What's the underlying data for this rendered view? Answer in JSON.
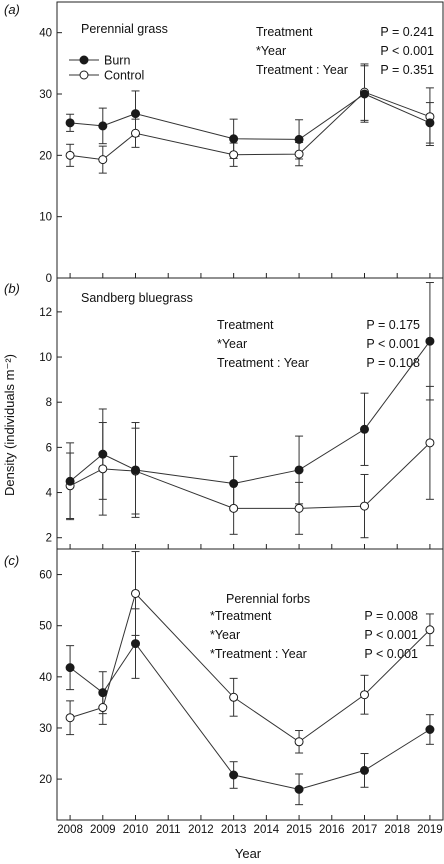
{
  "y_axis_title": "Density (individuals m⁻²)",
  "x_axis_title": "Year",
  "x_ticks": [
    "2008",
    "2009",
    "2010",
    "2011",
    "2012",
    "2013",
    "2014",
    "2015",
    "2016",
    "2017",
    "2018",
    "2019"
  ],
  "colors": {
    "burn": "#1a1a1a",
    "control": "#ffffff",
    "line": "#333333"
  },
  "chart_data": [
    {
      "type": "line",
      "panel_label": "(a)",
      "title": "Perennial grass",
      "xlabel": "Year",
      "ylabel": "Density (individuals m⁻²)",
      "xlim": [
        2007.6,
        2019.4
      ],
      "ylim": [
        0,
        45
      ],
      "yticks": [
        0,
        10,
        20,
        30,
        40
      ],
      "legend": {
        "placement": "top-left",
        "entries": [
          "Burn",
          "Control"
        ]
      },
      "stats": [
        {
          "term": "Treatment",
          "p": "P = 0.241"
        },
        {
          "term": "*Year",
          "p": "P < 0.001"
        },
        {
          "term": "Treatment : Year",
          "p": "P = 0.351"
        }
      ],
      "x": [
        2008,
        2009,
        2010,
        2013,
        2015,
        2017,
        2019
      ],
      "series": [
        {
          "name": "Burn",
          "marker": "filled",
          "values": [
            25.3,
            24.8,
            26.8,
            22.7,
            22.6,
            30.0,
            25.3
          ],
          "errors": [
            1.4,
            2.9,
            3.7,
            3.2,
            3.2,
            4.6,
            3.3
          ]
        },
        {
          "name": "Control",
          "marker": "open",
          "values": [
            20.0,
            19.3,
            23.6,
            20.1,
            20.2,
            30.3,
            26.3
          ],
          "errors": [
            1.8,
            2.2,
            2.3,
            1.9,
            1.9,
            4.6,
            4.7
          ]
        }
      ]
    },
    {
      "type": "line",
      "panel_label": "(b)",
      "title": "Sandberg bluegrass",
      "xlabel": "Year",
      "ylabel": "Density (individuals m⁻²)",
      "xlim": [
        2007.6,
        2019.4
      ],
      "ylim": [
        1.5,
        13.5
      ],
      "yticks": [
        2,
        4,
        6,
        8,
        10,
        12
      ],
      "stats": [
        {
          "term": "Treatment",
          "p": "P = 0.175"
        },
        {
          "term": "*Year",
          "p": "P < 0.001"
        },
        {
          "term": "Treatment : Year",
          "p": "P = 0.108"
        }
      ],
      "x": [
        2008,
        2009,
        2010,
        2013,
        2015,
        2017,
        2019
      ],
      "series": [
        {
          "name": "Burn",
          "marker": "filled",
          "values": [
            4.5,
            5.7,
            5.0,
            4.4,
            5.0,
            6.8,
            10.7
          ],
          "errors": [
            1.7,
            2.0,
            2.1,
            1.2,
            1.5,
            1.6,
            2.6
          ]
        },
        {
          "name": "Control",
          "marker": "open",
          "values": [
            4.3,
            5.05,
            4.95,
            3.3,
            3.3,
            3.4,
            6.2
          ],
          "errors": [
            1.45,
            2.05,
            1.9,
            1.15,
            1.15,
            1.4,
            2.5
          ]
        }
      ]
    },
    {
      "type": "line",
      "panel_label": "(c)",
      "title": "Perennial forbs",
      "xlabel": "Year",
      "ylabel": "Density (individuals m⁻²)",
      "xlim": [
        2007.6,
        2019.4
      ],
      "ylim": [
        12,
        65
      ],
      "yticks": [
        20,
        30,
        40,
        50,
        60
      ],
      "stats": [
        {
          "term": "*Treatment",
          "p": "P = 0.008"
        },
        {
          "term": "*Year",
          "p": "P < 0.001"
        },
        {
          "term": "*Treatment : Year",
          "p": "P <  0.001"
        }
      ],
      "x": [
        2008,
        2009,
        2010,
        2013,
        2015,
        2017,
        2019
      ],
      "series": [
        {
          "name": "Burn",
          "marker": "filled",
          "values": [
            41.8,
            36.9,
            46.5,
            20.8,
            18.0,
            21.7,
            29.7
          ],
          "errors": [
            4.3,
            4.1,
            6.8,
            2.6,
            3.0,
            3.3,
            2.9
          ]
        },
        {
          "name": "Control",
          "marker": "open",
          "values": [
            32.0,
            34.0,
            56.3,
            36.0,
            27.3,
            36.5,
            49.2
          ],
          "errors": [
            3.3,
            3.3,
            8.2,
            3.7,
            2.2,
            3.8,
            3.1
          ]
        }
      ]
    }
  ]
}
